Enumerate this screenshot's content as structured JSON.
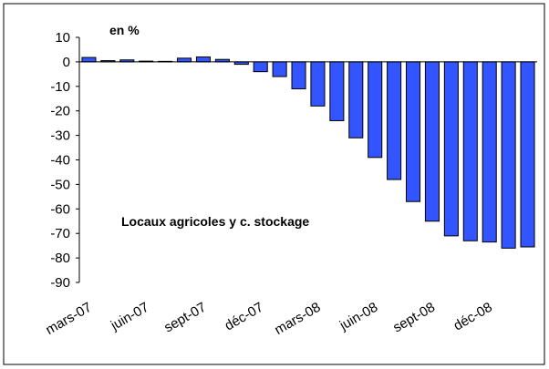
{
  "chart_data": {
    "type": "bar",
    "title": "en %",
    "annotation": "Locaux agricoles y c. stockage",
    "categories": [
      "mars-07",
      null,
      null,
      "juin-07",
      null,
      null,
      "sept-07",
      null,
      null,
      "déc-07",
      null,
      null,
      "mars-08",
      null,
      null,
      "juin-08",
      null,
      null,
      "sept-08",
      null,
      null,
      "déc-08",
      null,
      null
    ],
    "values": [
      1.8,
      0.5,
      0.8,
      0.3,
      0.2,
      1.5,
      2.0,
      1.0,
      -1.0,
      -4,
      -6,
      -11,
      -18,
      -24,
      -31,
      -39,
      -48,
      -57,
      -65,
      -71,
      -73,
      -73.5,
      -76,
      -75.5
    ],
    "color": "#3355ff",
    "ylim": [
      -90,
      10
    ],
    "yticks": [
      10,
      0,
      -10,
      -20,
      -30,
      -40,
      -50,
      -60,
      -70,
      -80,
      -90
    ]
  }
}
